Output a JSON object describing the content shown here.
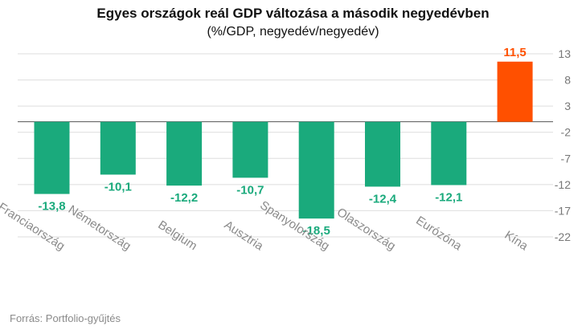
{
  "chart_data": {
    "type": "bar",
    "title": "Egyes országok reál GDP változása a második negyedévben",
    "subtitle": "(%/GDP, negyedév/negyedév)",
    "categories": [
      "Franciaország",
      "Németország",
      "Belgium",
      "Ausztria",
      "Spanyolország",
      "Olaszország",
      "Eurózóna",
      "Kína"
    ],
    "values": [
      -13.8,
      -10.1,
      -12.2,
      -10.7,
      -18.5,
      -12.4,
      -12.1,
      11.5
    ],
    "value_labels": [
      "-13,8",
      "-10,1",
      "-12,2",
      "-10,7",
      "-18,5",
      "-12,4",
      "-12,1",
      "11,5"
    ],
    "y_ticks": [
      13,
      8,
      3,
      -2,
      -7,
      -12,
      -17,
      -22
    ],
    "y_tick_labels": [
      "13",
      "8",
      "3",
      "-2",
      "-7",
      "-12",
      "-17",
      "-22"
    ],
    "ylim": [
      -22,
      13
    ],
    "y_axis_side": "right",
    "grid": true,
    "colors": {
      "negative": "#1aaa7c",
      "positive": "#ff5000",
      "grid": "#dedede",
      "axis_text": "#777777"
    }
  },
  "source": "Forrás: Portfolio-gyűjtés"
}
